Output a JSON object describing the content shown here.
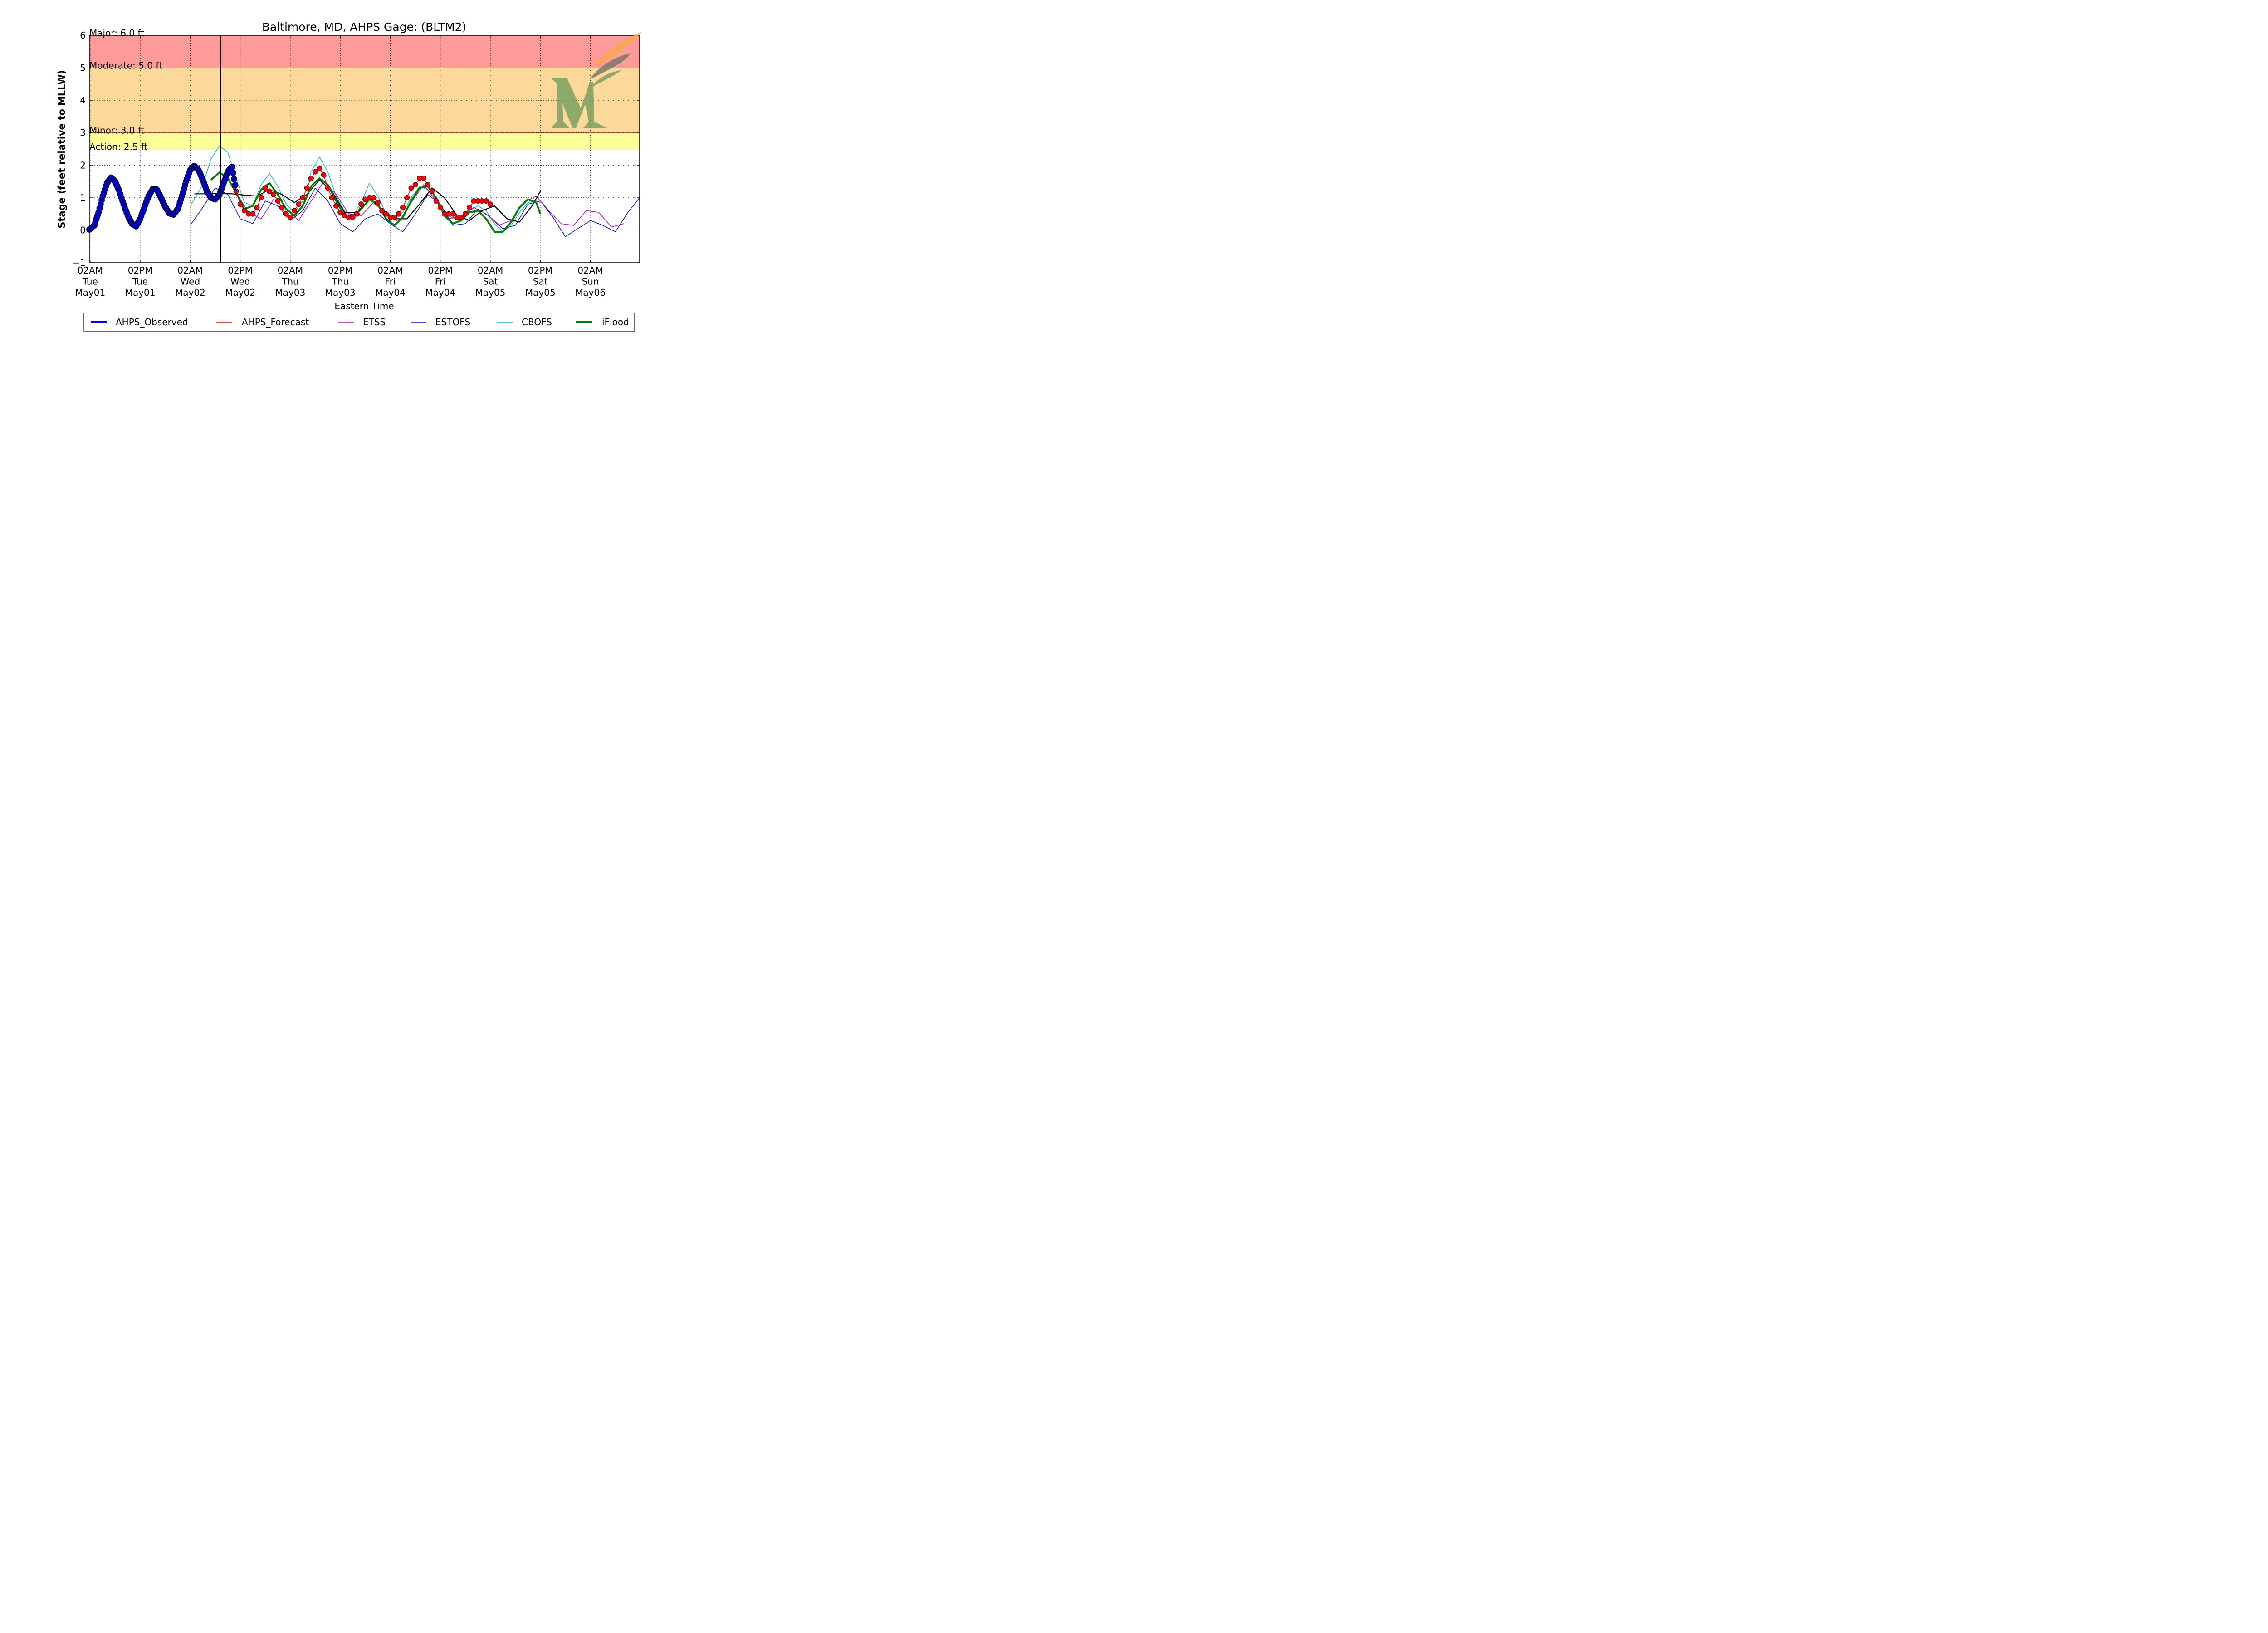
{
  "chart_data": {
    "type": "line",
    "title": "Baltimore, MD, AHPS Gage: (BLTM2)",
    "xlabel": "Eastern Time",
    "ylabel": "Stage (feet relative to MLLW)",
    "ylim": [
      -1,
      6
    ],
    "xlim_hours": [
      -0.2,
      131.8
    ],
    "yticks": [
      "−1",
      "0",
      "1",
      "2",
      "3",
      "4",
      "5",
      "6"
    ],
    "xticks": [
      {
        "h": 0,
        "lines": [
          "02AM",
          "Tue",
          "May01"
        ]
      },
      {
        "h": 12,
        "lines": [
          "02PM",
          "Tue",
          "May01"
        ]
      },
      {
        "h": 24,
        "lines": [
          "02AM",
          "Wed",
          "May02"
        ]
      },
      {
        "h": 36,
        "lines": [
          "02PM",
          "Wed",
          "May02"
        ]
      },
      {
        "h": 48,
        "lines": [
          "02AM",
          "Thu",
          "May03"
        ]
      },
      {
        "h": 60,
        "lines": [
          "02PM",
          "Thu",
          "May03"
        ]
      },
      {
        "h": 72,
        "lines": [
          "02AM",
          "Fri",
          "May04"
        ]
      },
      {
        "h": 84,
        "lines": [
          "02PM",
          "Fri",
          "May04"
        ]
      },
      {
        "h": 96,
        "lines": [
          "02AM",
          "Sat",
          "May05"
        ]
      },
      {
        "h": 108,
        "lines": [
          "02PM",
          "Sat",
          "May05"
        ]
      },
      {
        "h": 120,
        "lines": [
          "02AM",
          "Sun",
          "May06"
        ]
      }
    ],
    "grid": true,
    "now_line_hour": 31.3,
    "bands": [
      {
        "from": 5.0,
        "to": 6.0,
        "color": "#ff9a9a"
      },
      {
        "from": 3.0,
        "to": 5.0,
        "color": "#fcd99b"
      },
      {
        "from": 2.5,
        "to": 3.0,
        "color": "#ffff9a"
      }
    ],
    "thresholds": [
      {
        "label": "Major: 6.0 ft",
        "value": 6.0
      },
      {
        "label": "Moderate: 5.0 ft",
        "value": 5.0
      },
      {
        "label": "Minor: 3.0 ft",
        "value": 3.0
      },
      {
        "label": "Action: 2.5 ft",
        "value": 2.5
      }
    ],
    "legend_position": "bottom",
    "series": [
      {
        "name": "AHPS_Observed",
        "color": "#0000ff",
        "style": "thick-markers",
        "x": [
          -0.2,
          1,
          2,
          3,
          4,
          5,
          6,
          7,
          8,
          9,
          10,
          11,
          12,
          13,
          14,
          15,
          16,
          17,
          18,
          19,
          20,
          21,
          22,
          23,
          24,
          25,
          26,
          27,
          28,
          29,
          30,
          31,
          32,
          33,
          34,
          35
        ],
        "y": [
          0.02,
          0.15,
          0.55,
          1.05,
          1.45,
          1.62,
          1.5,
          1.2,
          0.8,
          0.45,
          0.2,
          0.12,
          0.35,
          0.7,
          1.05,
          1.27,
          1.25,
          1.0,
          0.72,
          0.52,
          0.48,
          0.65,
          1.05,
          1.5,
          1.85,
          1.98,
          1.85,
          1.55,
          1.2,
          1.0,
          0.95,
          1.1,
          1.45,
          1.8,
          1.95,
          1.2
        ]
      },
      {
        "name": "AHPS_Forecast",
        "color": "#ff0000",
        "style": "line-markers",
        "x": [
          35,
          36,
          37,
          38,
          39,
          40,
          41,
          42,
          43,
          44,
          45,
          46,
          47,
          48,
          49,
          50,
          51,
          52,
          53,
          54,
          55,
          56,
          57,
          58,
          59,
          60,
          61,
          62,
          63,
          64,
          65,
          66,
          67,
          68,
          69,
          70,
          71,
          72,
          73,
          74,
          75,
          76,
          77,
          78,
          79,
          80,
          81,
          82,
          83,
          84,
          85,
          86,
          87,
          88,
          89,
          90,
          91,
          92,
          93,
          94,
          95,
          96
        ],
        "y": [
          1.2,
          0.8,
          0.6,
          0.5,
          0.5,
          0.7,
          1.0,
          1.3,
          1.2,
          1.1,
          0.9,
          0.7,
          0.5,
          0.4,
          0.6,
          0.8,
          1.0,
          1.3,
          1.6,
          1.8,
          1.9,
          1.7,
          1.3,
          1.0,
          0.75,
          0.55,
          0.45,
          0.4,
          0.4,
          0.5,
          0.8,
          0.95,
          1.0,
          1.0,
          0.85,
          0.6,
          0.5,
          0.4,
          0.4,
          0.5,
          0.7,
          1.0,
          1.3,
          1.4,
          1.6,
          1.6,
          1.4,
          1.2,
          0.9,
          0.7,
          0.5,
          0.5,
          0.5,
          0.4,
          0.4,
          0.5,
          0.7,
          0.9,
          0.9,
          0.9,
          0.9,
          0.8
        ]
      },
      {
        "name": "ETSS",
        "color": "#bf00bf",
        "style": "line",
        "x": [
          35,
          38,
          41,
          44,
          47,
          50,
          53,
          56,
          59,
          62,
          65,
          68,
          71,
          74,
          77,
          80,
          83,
          86,
          89,
          92,
          95,
          98,
          101,
          104,
          107,
          110,
          113,
          116,
          119,
          122,
          125,
          128
        ],
        "y": [
          1.15,
          0.55,
          0.35,
          0.95,
          0.65,
          0.3,
          0.9,
          1.5,
          1.1,
          0.5,
          0.45,
          0.85,
          0.5,
          0.25,
          0.85,
          1.4,
          0.9,
          0.35,
          0.45,
          0.7,
          0.5,
          0.15,
          0.3,
          0.85,
          1.05,
          0.6,
          0.2,
          0.15,
          0.6,
          0.55,
          0.1,
          0.2
        ]
      },
      {
        "name": "ESTOFS",
        "color": "#0000ff",
        "style": "line",
        "x": [
          24,
          27,
          30,
          33,
          36,
          39,
          42,
          45,
          48,
          51,
          54,
          57,
          60,
          63,
          66,
          69,
          72,
          75,
          78,
          81,
          84,
          87,
          90,
          93,
          96,
          99,
          102,
          105,
          108,
          111,
          114,
          117,
          120,
          123,
          126,
          129,
          131.8
        ],
        "y": [
          0.15,
          0.7,
          1.3,
          1.1,
          0.35,
          0.2,
          0.9,
          0.75,
          0.3,
          0.6,
          1.3,
          0.9,
          0.2,
          -0.05,
          0.35,
          0.5,
          0.2,
          -0.05,
          0.5,
          1.1,
          0.8,
          0.15,
          0.2,
          0.65,
          0.4,
          0.05,
          0.15,
          0.8,
          0.9,
          0.4,
          -0.2,
          0.05,
          0.3,
          0.15,
          -0.05,
          0.55,
          1.0
        ]
      },
      {
        "name": "CBOFS",
        "color": "#00bfbf",
        "style": "line",
        "x": [
          24,
          27,
          29,
          31,
          33,
          35,
          37,
          39,
          41,
          43,
          45,
          47,
          49,
          51,
          53,
          55,
          57,
          59,
          61,
          63,
          65,
          67,
          69,
          71,
          73,
          75,
          77,
          79,
          81,
          83,
          85,
          87,
          89,
          91,
          93,
          95,
          97,
          99,
          101,
          103,
          105,
          107,
          108
        ],
        "y": [
          0.75,
          1.4,
          2.2,
          2.6,
          2.4,
          1.6,
          0.85,
          0.75,
          1.4,
          1.75,
          1.35,
          0.8,
          0.55,
          0.9,
          1.8,
          2.25,
          1.8,
          1.05,
          0.6,
          0.45,
          0.85,
          1.45,
          1.05,
          0.5,
          0.35,
          0.55,
          1.0,
          1.35,
          1.25,
          0.9,
          0.6,
          0.35,
          0.4,
          0.6,
          0.75,
          0.6,
          0.2,
          -0.05,
          0.15,
          0.55,
          0.85,
          0.9,
          0.85
        ]
      },
      {
        "name": "iFlood",
        "color": "#007f00",
        "style": "thick",
        "x": [
          29,
          31,
          33,
          35,
          37,
          39,
          41,
          43,
          45,
          47,
          49,
          51,
          53,
          55,
          57,
          59,
          61,
          63,
          65,
          67,
          69,
          71,
          73,
          75,
          77,
          79,
          81,
          83,
          85,
          87,
          89,
          91,
          93,
          95,
          97,
          99,
          101,
          103,
          105,
          107,
          108
        ],
        "y": [
          1.55,
          1.78,
          1.6,
          1.15,
          0.65,
          0.75,
          1.25,
          1.45,
          1.1,
          0.65,
          0.45,
          0.75,
          1.35,
          1.6,
          1.4,
          0.9,
          0.45,
          0.4,
          0.65,
          0.95,
          0.8,
          0.35,
          0.15,
          0.4,
          0.9,
          1.3,
          1.35,
          1.0,
          0.45,
          0.2,
          0.3,
          0.55,
          0.6,
          0.35,
          -0.05,
          -0.05,
          0.25,
          0.7,
          0.95,
          0.85,
          0.5
        ]
      },
      {
        "name": "",
        "color": "#000000",
        "style": "line",
        "x": [
          25,
          28,
          31,
          34,
          37,
          40,
          43,
          46,
          49,
          52,
          55,
          58,
          61,
          64,
          67,
          70,
          73,
          76,
          79,
          82,
          85,
          88,
          91,
          94,
          97,
          100,
          103,
          106,
          108
        ],
        "y": [
          1.12,
          1.12,
          1.13,
          1.12,
          1.08,
          1.05,
          1.25,
          1.1,
          0.85,
          1.1,
          1.55,
          1.2,
          0.55,
          0.55,
          0.95,
          0.65,
          0.35,
          0.35,
          0.8,
          1.3,
          1.0,
          0.45,
          0.3,
          0.6,
          0.75,
          0.35,
          0.25,
          0.75,
          1.2
        ]
      }
    ]
  }
}
